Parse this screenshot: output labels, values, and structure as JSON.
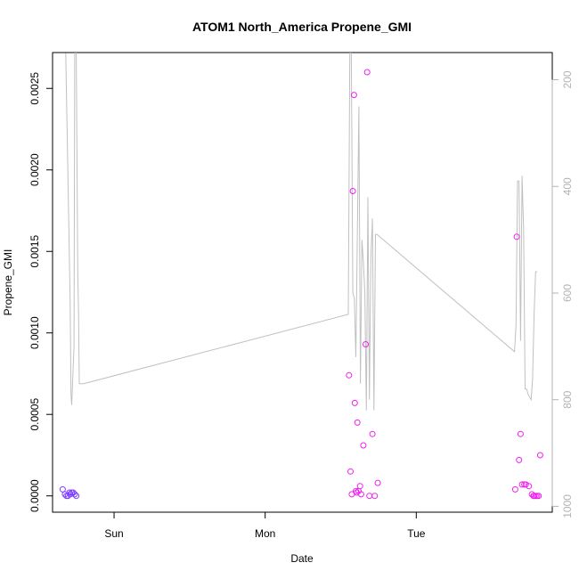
{
  "chart_data": {
    "type": "scatter",
    "title": "ATOM1 North_America Propene_GMI",
    "xlabel": "Date",
    "ylabel": "Propene_GMI",
    "x_ticks": [
      "Sun",
      "Mon",
      "Tue"
    ],
    "x_tick_days": [
      1,
      2,
      3
    ],
    "xlim_days": [
      0.593,
      3.9
    ],
    "ylim": [
      -0.0001,
      0.00272
    ],
    "y_ticks": [
      "0.0000",
      "0.0005",
      "0.0010",
      "0.0015",
      "0.0020",
      "0.0025"
    ],
    "y_tick_values": [
      0,
      0.0005,
      0.001,
      0.0015,
      0.002,
      0.0025
    ],
    "y2_ticks": [
      "200",
      "400",
      "600",
      "800",
      "1000"
    ],
    "y2_tick_values": [
      200,
      400,
      600,
      800,
      1000
    ],
    "y2lim": [
      1011,
      149
    ],
    "grid": false,
    "colors": {
      "line": "#c0c0c0",
      "points_early": "#7f3fff",
      "points_late": "#ee22ee",
      "axis": "#000000",
      "right_axis": "#b3b3b3"
    },
    "line_series": {
      "name": "",
      "x_days": [
        0.68,
        0.71,
        0.715,
        0.72,
        0.735,
        0.74,
        0.75,
        0.76,
        0.765,
        0.77,
        0.78,
        0.79,
        0.8,
        2.55,
        2.56,
        2.57,
        2.58,
        2.59,
        2.6,
        2.62,
        2.63,
        2.64,
        2.65,
        2.66,
        2.67,
        2.68,
        2.69,
        2.7,
        2.71,
        2.72,
        2.73,
        2.74,
        3.65,
        3.66,
        3.67,
        3.68,
        3.69,
        3.7,
        3.71,
        3.72,
        3.73,
        3.74,
        3.76,
        3.77,
        3.78,
        3.79,
        3.8
      ],
      "y": [
        150,
        620,
        790,
        810,
        700,
        150,
        150,
        560,
        640,
        770,
        770,
        770,
        770,
        640,
        150,
        150,
        600,
        610,
        720,
        250,
        770,
        500,
        540,
        600,
        820,
        420,
        800,
        530,
        460,
        820,
        490,
        490,
        710,
        660,
        390,
        390,
        690,
        380,
        480,
        780,
        780,
        790,
        800,
        760,
        640,
        560,
        560
      ]
    },
    "series": [
      {
        "name": "",
        "color": "#7f3fff",
        "x_days": [
          0.66,
          0.675,
          0.685,
          0.695,
          0.705,
          0.71,
          0.72,
          0.73,
          0.74,
          0.75
        ],
        "y": [
          4e-05,
          1e-05,
          0.0,
          0.0,
          2e-05,
          1e-05,
          2e-05,
          2e-05,
          1e-05,
          0.0
        ]
      },
      {
        "name": "",
        "color": "#ee22ee",
        "x_days": [
          2.555,
          2.565,
          2.573,
          2.58,
          2.588,
          2.593,
          2.6,
          2.605,
          2.61,
          2.618,
          2.628,
          2.635,
          2.65,
          2.665,
          2.675,
          2.69,
          2.71,
          2.725,
          2.745,
          3.655,
          3.665,
          3.68,
          3.69,
          3.7,
          3.715,
          3.725,
          3.745,
          3.765,
          3.775,
          3.78,
          3.79,
          3.8,
          3.81,
          3.82
        ],
        "y": [
          0.00074,
          0.00015,
          1e-05,
          0.00187,
          0.00246,
          0.00057,
          3e-05,
          2e-05,
          0.00045,
          3e-05,
          6e-05,
          1e-05,
          0.00031,
          0.00093,
          0.0026,
          0.0,
          0.00038,
          0.0,
          8e-05,
          4e-05,
          0.00159,
          0.00022,
          0.00038,
          7e-05,
          7e-05,
          7e-05,
          6e-05,
          1e-05,
          0.0,
          0.0,
          0.0,
          0.0,
          0.0,
          0.00025
        ]
      }
    ]
  }
}
